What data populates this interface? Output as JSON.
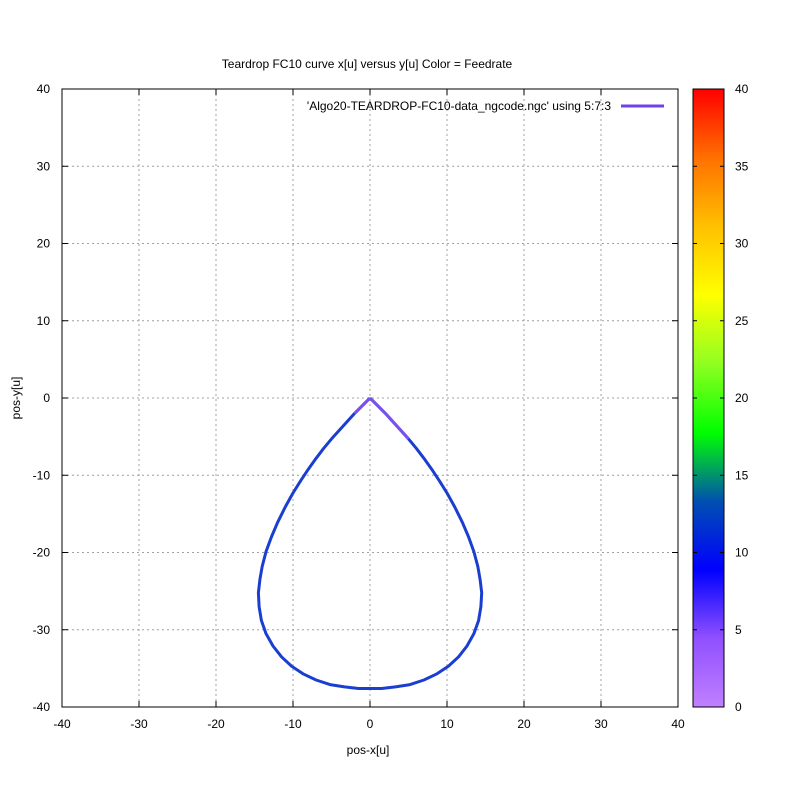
{
  "chart_data": {
    "type": "line",
    "title": "Teardrop FC10 curve x[u] versus y[u] Color = Feedrate",
    "xlabel": "pos-x[u]",
    "ylabel": "pos-y[u]",
    "xlim": [
      -40,
      40
    ],
    "ylim": [
      -40,
      40
    ],
    "xticks": [
      -40,
      -30,
      -20,
      -10,
      0,
      10,
      20,
      30,
      40
    ],
    "yticks": [
      -40,
      -30,
      -20,
      -10,
      0,
      10,
      20,
      30,
      40
    ],
    "grid": true,
    "legend_position": "top-right",
    "series": [
      {
        "name": "'Algo20-TEARDROP-FC10-data_ngcode.ngc' using 5:7:3",
        "color": "#7040e8",
        "line_color_main": "#1a3fd0",
        "x": [
          0,
          -1,
          -2,
          -3,
          -4,
          -5,
          -6,
          -7,
          -8,
          -9,
          -10,
          -11,
          -12,
          -12.8,
          -13.5,
          -14.0,
          -14.3,
          -14.5,
          -14.4,
          -14.1,
          -13.5,
          -12.6,
          -11.5,
          -10.2,
          -8.7,
          -7.0,
          -5.2,
          -3.3,
          -1.5,
          0,
          1.5,
          3.3,
          5.2,
          7.0,
          8.7,
          10.2,
          11.5,
          12.6,
          13.5,
          14.1,
          14.4,
          14.5,
          14.3,
          14.0,
          13.5,
          12.8,
          12,
          11,
          10,
          9,
          8,
          7,
          6,
          5,
          4,
          3,
          2,
          1,
          0
        ],
        "y": [
          0,
          -1.0,
          -2.0,
          -3.1,
          -4.2,
          -5.3,
          -6.5,
          -7.8,
          -9.2,
          -10.7,
          -12.3,
          -14.1,
          -16.1,
          -18.0,
          -19.9,
          -21.8,
          -23.5,
          -25.2,
          -27.0,
          -28.8,
          -30.5,
          -32.1,
          -33.5,
          -34.7,
          -35.7,
          -36.5,
          -37.1,
          -37.4,
          -37.6,
          -37.6,
          -37.6,
          -37.4,
          -37.1,
          -36.5,
          -35.7,
          -34.7,
          -33.5,
          -32.1,
          -30.5,
          -28.8,
          -27.0,
          -25.2,
          -23.5,
          -21.8,
          -19.9,
          -18.0,
          -16.1,
          -14.1,
          -12.3,
          -10.7,
          -9.2,
          -7.8,
          -6.5,
          -5.3,
          -4.2,
          -3.1,
          -2.0,
          -1.0,
          0
        ],
        "feedrate_note_segment": {
          "from_x": 0,
          "to_x": 5.2,
          "color": "#7a50f0"
        }
      }
    ],
    "colorbar": {
      "range": [
        0,
        40
      ],
      "ticks": [
        0,
        5,
        10,
        15,
        20,
        25,
        30,
        35,
        40
      ],
      "stops": [
        "#c080ff",
        "#9050ff",
        "#0000ff",
        "#0050b0",
        "#00ff00",
        "#90ff20",
        "#ffff00",
        "#ffc000",
        "#ff7000",
        "#ff0000"
      ]
    }
  }
}
